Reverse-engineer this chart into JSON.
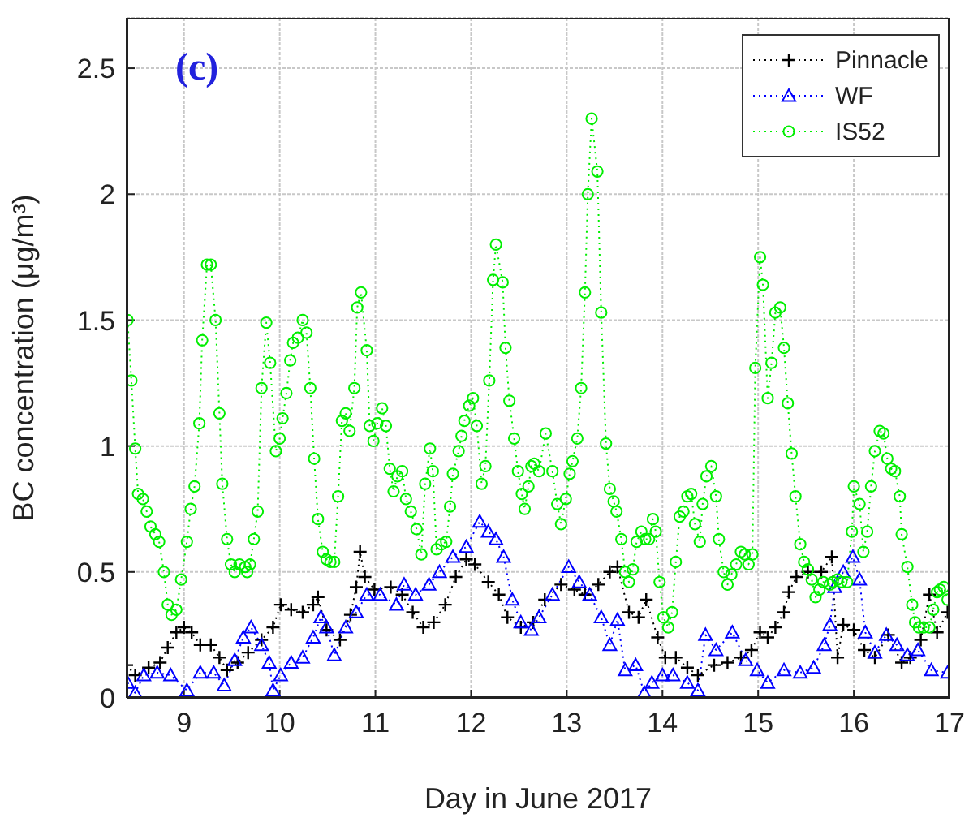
{
  "chart_data": {
    "type": "line",
    "xlabel": "Day in June 2017",
    "ylabel": "BC concentration (μg/m³)",
    "annotations": [
      "(c)"
    ],
    "xlim": [
      8.4,
      17
    ],
    "xticks": [
      9,
      10,
      11,
      12,
      13,
      14,
      15,
      16,
      17
    ],
    "ylim": [
      0,
      2.7
    ],
    "yticks": [
      0,
      0.5,
      1,
      1.5,
      2,
      2.5
    ],
    "grid": true,
    "legend": "top right",
    "line_style": "dotted",
    "series": [
      {
        "name": "Pinnacle",
        "color": "#000000",
        "marker": "cross",
        "x": [
          8.4,
          8.49,
          8.63,
          8.75,
          8.83,
          8.92,
          9.0,
          9.08,
          9.17,
          9.28,
          9.37,
          9.45,
          9.56,
          9.67,
          9.81,
          9.93,
          10.01,
          10.12,
          10.24,
          10.35,
          10.4,
          10.49,
          10.63,
          10.74,
          10.8,
          10.84,
          10.89,
          10.99,
          11.16,
          11.28,
          11.39,
          11.5,
          11.61,
          11.73,
          11.84,
          11.95,
          12.04,
          12.18,
          12.29,
          12.38,
          12.52,
          12.65,
          12.77,
          12.94,
          13.08,
          13.19,
          13.33,
          13.45,
          13.53,
          13.65,
          13.75,
          13.83,
          13.95,
          14.03,
          14.14,
          14.26,
          14.37,
          14.54,
          14.68,
          14.82,
          14.93,
          15.02,
          15.1,
          15.18,
          15.27,
          15.32,
          15.4,
          15.52,
          15.66,
          15.77,
          15.83,
          15.89,
          16.0,
          16.11,
          16.22,
          16.36,
          16.5,
          16.59,
          16.7,
          16.79,
          16.87,
          16.98
        ],
        "values": [
          0.13,
          0.09,
          0.12,
          0.14,
          0.2,
          0.26,
          0.28,
          0.26,
          0.21,
          0.21,
          0.16,
          0.11,
          0.14,
          0.18,
          0.23,
          0.28,
          0.37,
          0.35,
          0.34,
          0.37,
          0.4,
          0.27,
          0.23,
          0.33,
          0.44,
          0.58,
          0.48,
          0.43,
          0.44,
          0.41,
          0.34,
          0.28,
          0.3,
          0.37,
          0.48,
          0.55,
          0.53,
          0.46,
          0.41,
          0.32,
          0.28,
          0.3,
          0.39,
          0.45,
          0.43,
          0.41,
          0.45,
          0.5,
          0.52,
          0.34,
          0.32,
          0.39,
          0.24,
          0.16,
          0.16,
          0.12,
          0.09,
          0.13,
          0.14,
          0.16,
          0.19,
          0.26,
          0.24,
          0.28,
          0.34,
          0.42,
          0.48,
          0.5,
          0.5,
          0.56,
          0.16,
          0.29,
          0.27,
          0.19,
          0.16,
          0.25,
          0.14,
          0.16,
          0.23,
          0.41,
          0.26,
          0.34
        ]
      },
      {
        "name": "WF",
        "color": "#0000ff",
        "marker": "triangle",
        "x": [
          8.41,
          8.49,
          8.58,
          8.72,
          8.86,
          9.03,
          9.17,
          9.31,
          9.42,
          9.53,
          9.62,
          9.7,
          9.81,
          9.89,
          9.93,
          10.01,
          10.12,
          10.24,
          10.35,
          10.43,
          10.49,
          10.57,
          10.69,
          10.8,
          10.91,
          11.05,
          11.22,
          11.3,
          11.42,
          11.56,
          11.67,
          11.81,
          11.95,
          12.09,
          12.18,
          12.26,
          12.34,
          12.43,
          12.52,
          12.63,
          12.71,
          12.85,
          13.02,
          13.13,
          13.24,
          13.36,
          13.45,
          13.53,
          13.61,
          13.72,
          13.81,
          13.89,
          14.0,
          14.11,
          14.26,
          14.37,
          14.45,
          14.56,
          14.73,
          14.87,
          14.99,
          15.1,
          15.27,
          15.44,
          15.58,
          15.69,
          15.75,
          15.8,
          15.89,
          15.99,
          16.06,
          16.12,
          16.22,
          16.34,
          16.45,
          16.56,
          16.67,
          16.81,
          16.98
        ],
        "values": [
          0.06,
          0.02,
          0.09,
          0.1,
          0.09,
          0.03,
          0.1,
          0.1,
          0.05,
          0.15,
          0.24,
          0.28,
          0.21,
          0.14,
          0.03,
          0.09,
          0.14,
          0.16,
          0.24,
          0.32,
          0.28,
          0.17,
          0.28,
          0.34,
          0.41,
          0.41,
          0.37,
          0.45,
          0.41,
          0.45,
          0.5,
          0.56,
          0.6,
          0.7,
          0.66,
          0.63,
          0.56,
          0.39,
          0.3,
          0.27,
          0.32,
          0.41,
          0.52,
          0.46,
          0.41,
          0.32,
          0.21,
          0.31,
          0.11,
          0.13,
          0.02,
          0.06,
          0.09,
          0.09,
          0.06,
          0.03,
          0.25,
          0.19,
          0.26,
          0.15,
          0.11,
          0.06,
          0.11,
          0.1,
          0.12,
          0.21,
          0.29,
          0.44,
          0.5,
          0.56,
          0.47,
          0.26,
          0.18,
          0.25,
          0.21,
          0.17,
          0.19,
          0.11,
          0.1
        ]
      },
      {
        "name": "IS52",
        "color": "#00ee00",
        "marker": "circle",
        "x": [
          8.41,
          8.45,
          8.49,
          8.52,
          8.57,
          8.61,
          8.65,
          8.7,
          8.74,
          8.79,
          8.83,
          8.87,
          8.92,
          8.97,
          9.03,
          9.07,
          9.11,
          9.16,
          9.19,
          9.24,
          9.28,
          9.33,
          9.37,
          9.4,
          9.45,
          9.49,
          9.53,
          9.58,
          9.64,
          9.66,
          9.69,
          9.73,
          9.77,
          9.81,
          9.86,
          9.9,
          9.96,
          10.0,
          10.03,
          10.07,
          10.11,
          10.14,
          10.19,
          10.24,
          10.28,
          10.32,
          10.36,
          10.4,
          10.45,
          10.49,
          10.53,
          10.57,
          10.61,
          10.65,
          10.69,
          10.73,
          10.78,
          10.81,
          10.85,
          10.91,
          10.94,
          10.98,
          11.02,
          11.07,
          11.11,
          11.15,
          11.19,
          11.23,
          11.28,
          11.32,
          11.37,
          11.43,
          11.48,
          11.52,
          11.57,
          11.6,
          11.64,
          11.69,
          11.74,
          11.78,
          11.81,
          11.87,
          11.9,
          11.93,
          11.98,
          12.02,
          12.06,
          12.11,
          12.15,
          12.19,
          12.23,
          12.26,
          12.33,
          12.36,
          12.4,
          12.45,
          12.49,
          12.53,
          12.56,
          12.6,
          12.63,
          12.66,
          12.71,
          12.78,
          12.85,
          12.9,
          12.94,
          12.99,
          13.03,
          13.06,
          13.11,
          13.15,
          13.19,
          13.22,
          13.26,
          13.32,
          13.36,
          13.41,
          13.45,
          13.49,
          13.52,
          13.57,
          13.61,
          13.65,
          13.69,
          13.73,
          13.78,
          13.82,
          13.86,
          13.9,
          13.93,
          13.97,
          14.01,
          14.06,
          14.1,
          14.14,
          14.18,
          14.22,
          14.26,
          14.3,
          14.34,
          14.39,
          14.42,
          14.46,
          14.51,
          14.56,
          14.59,
          14.64,
          14.68,
          14.72,
          14.77,
          14.82,
          14.86,
          14.9,
          14.94,
          14.97,
          15.02,
          15.05,
          15.1,
          15.14,
          15.18,
          15.23,
          15.27,
          15.31,
          15.35,
          15.39,
          15.44,
          15.48,
          15.52,
          15.56,
          15.6,
          15.64,
          15.68,
          15.75,
          15.78,
          15.83,
          15.87,
          15.93,
          15.98,
          16.0,
          16.06,
          16.1,
          16.14,
          16.18,
          16.22,
          16.27,
          16.31,
          16.35,
          16.39,
          16.43,
          16.48,
          16.5,
          16.56,
          16.61,
          16.64,
          16.68,
          16.73,
          16.79,
          16.83,
          16.87,
          16.9,
          16.94,
          16.98
        ],
        "values": [
          1.5,
          1.26,
          0.99,
          0.81,
          0.79,
          0.74,
          0.68,
          0.65,
          0.62,
          0.5,
          0.37,
          0.33,
          0.35,
          0.47,
          0.62,
          0.75,
          0.84,
          1.09,
          1.42,
          1.72,
          1.72,
          1.5,
          1.13,
          0.85,
          0.63,
          0.53,
          0.5,
          0.53,
          0.52,
          0.5,
          0.53,
          0.63,
          0.74,
          1.23,
          1.49,
          1.33,
          0.98,
          1.03,
          1.11,
          1.21,
          1.34,
          1.41,
          1.43,
          1.5,
          1.45,
          1.23,
          0.95,
          0.71,
          0.58,
          0.55,
          0.54,
          0.54,
          0.8,
          1.1,
          1.13,
          1.06,
          1.23,
          1.55,
          1.61,
          1.38,
          1.08,
          1.02,
          1.09,
          1.15,
          1.08,
          0.91,
          0.82,
          0.88,
          0.9,
          0.79,
          0.74,
          0.67,
          0.57,
          0.85,
          0.99,
          0.9,
          0.59,
          0.61,
          0.62,
          0.76,
          0.89,
          0.98,
          1.04,
          1.1,
          1.16,
          1.19,
          1.08,
          0.85,
          0.92,
          1.26,
          1.66,
          1.8,
          1.65,
          1.39,
          1.18,
          1.03,
          0.9,
          0.81,
          0.75,
          0.84,
          0.92,
          0.93,
          0.9,
          1.05,
          0.9,
          0.77,
          0.69,
          0.79,
          0.89,
          0.94,
          1.03,
          1.23,
          1.61,
          2.0,
          2.3,
          2.09,
          1.53,
          1.01,
          0.83,
          0.78,
          0.74,
          0.63,
          0.5,
          0.46,
          0.51,
          0.62,
          0.66,
          0.63,
          0.63,
          0.71,
          0.66,
          0.46,
          0.32,
          0.28,
          0.34,
          0.54,
          0.72,
          0.74,
          0.8,
          0.81,
          0.69,
          0.62,
          0.77,
          0.88,
          0.92,
          0.8,
          0.63,
          0.5,
          0.45,
          0.49,
          0.53,
          0.58,
          0.57,
          0.53,
          0.57,
          1.31,
          1.75,
          1.64,
          1.19,
          1.33,
          1.53,
          1.55,
          1.39,
          1.17,
          0.97,
          0.8,
          0.61,
          0.54,
          0.51,
          0.47,
          0.4,
          0.43,
          0.46,
          0.45,
          0.46,
          0.47,
          0.46,
          0.46,
          0.66,
          0.84,
          0.77,
          0.58,
          0.66,
          0.84,
          0.98,
          1.06,
          1.05,
          0.95,
          0.91,
          0.9,
          0.8,
          0.65,
          0.52,
          0.37,
          0.3,
          0.28,
          0.28,
          0.28,
          0.35,
          0.42,
          0.43,
          0.44,
          0.39
        ]
      }
    ]
  }
}
